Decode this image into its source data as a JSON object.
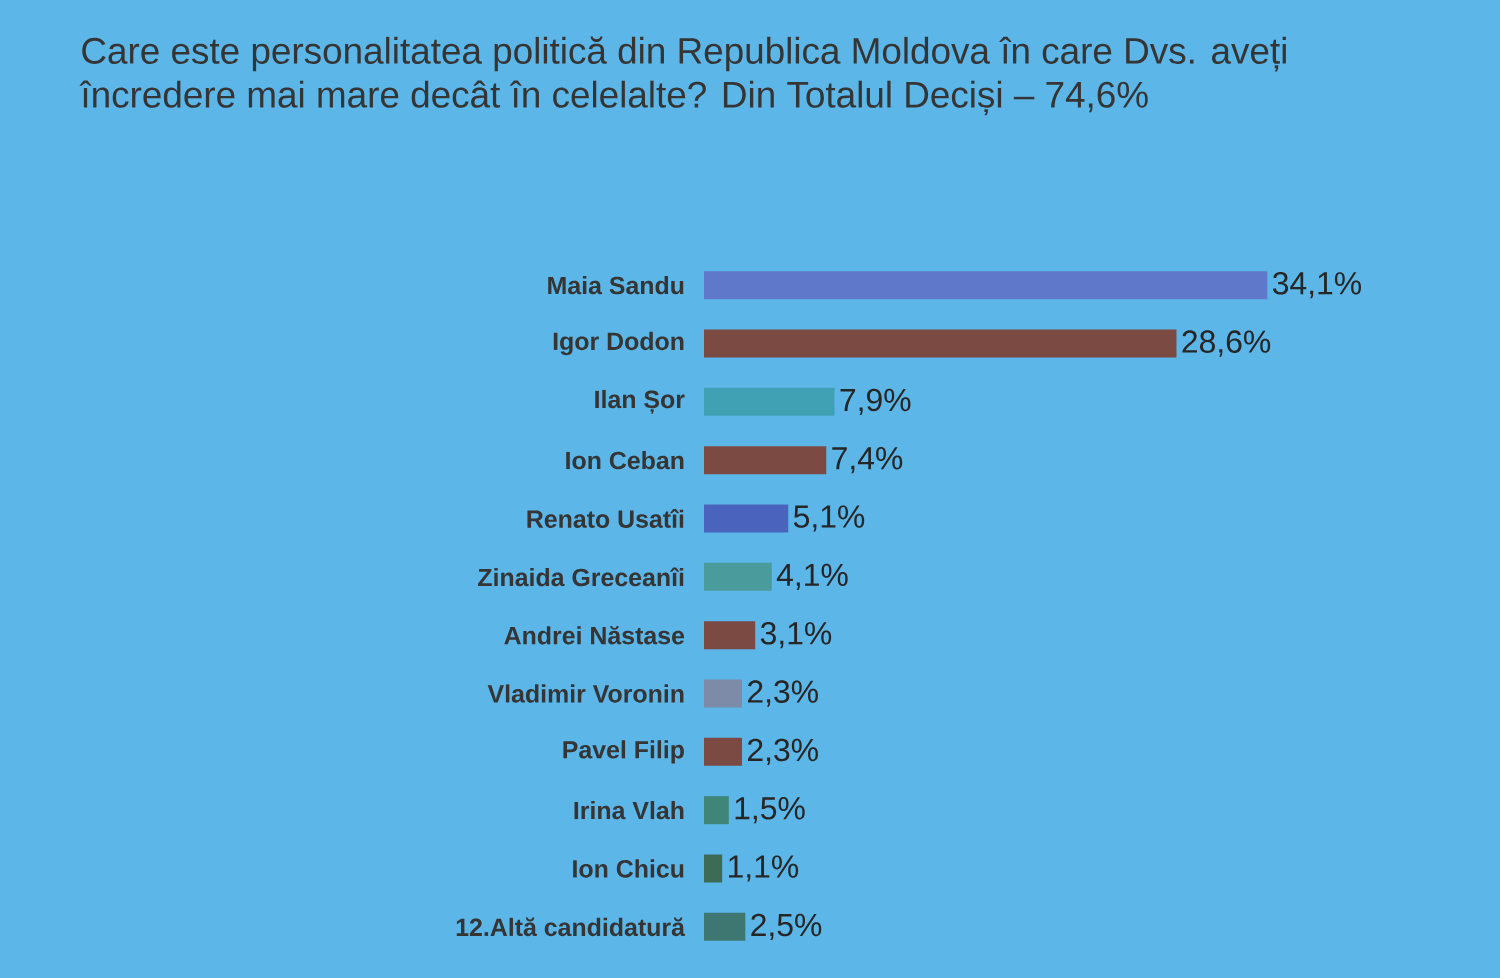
{
  "chart_data": {
    "type": "bar",
    "orientation": "horizontal",
    "tick_labels": "y",
    "title": "Care este personalitatea politică din Republica Moldova în care Dvs. aveți încredere mai mare decât în celelalte? Din Totalul Deciși – 74,6%",
    "categories": [
      "Maia Sandu",
      "Igor Dodon",
      "Ilan Șor",
      "Ion Ceban",
      "Renato Usatîi",
      "Zinaida Greceanîi",
      "Andrei Năstase",
      "Vladimir Voronin",
      "Pavel Filip",
      "Irina Vlah",
      "Ion Chicu",
      "12.Altă candidatură"
    ],
    "values": [
      34.1,
      28.6,
      7.9,
      7.4,
      5.1,
      4.1,
      3.1,
      2.3,
      2.3,
      1.5,
      1.1,
      2.5
    ],
    "colors": [
      "#5f78c9",
      "#7a4a43",
      "#40a0b4",
      "#7a4a43",
      "#4a64bd",
      "#4a9b9c",
      "#7a4a43",
      "#7d8aa8",
      "#7a4a43",
      "#3f8678",
      "#3e6b56",
      "#3e7672"
    ],
    "value_labels": [
      "34,1%",
      "28,6%",
      "7,9%",
      "7,4%",
      "5,1%",
      "4,1%",
      "3,1%",
      "2,3%",
      "2,3%",
      "1,5%",
      "1,1%",
      "2,5%"
    ]
  }
}
